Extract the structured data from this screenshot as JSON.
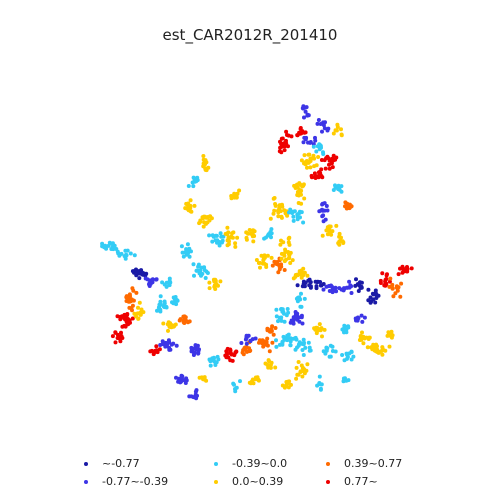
{
  "title": "est_CAR2012R_201410",
  "legend": {
    "placement": "bottom",
    "columns": 3,
    "items": [
      {
        "label": "~-0.77",
        "color": "#1a1aa6"
      },
      {
        "label": "-0.77~-0.39",
        "color": "#3d35e6"
      },
      {
        "label": "-0.39~0.0",
        "color": "#33ccf5"
      },
      {
        "label": "0.0~0.39",
        "color": "#ffcc00"
      },
      {
        "label": "0.39~0.77",
        "color": "#ff6a00"
      },
      {
        "label": "0.77~",
        "color": "#ee0000"
      }
    ]
  },
  "map_style": {
    "axes_visible": false,
    "grid": false,
    "background": "#ffffff"
  }
}
